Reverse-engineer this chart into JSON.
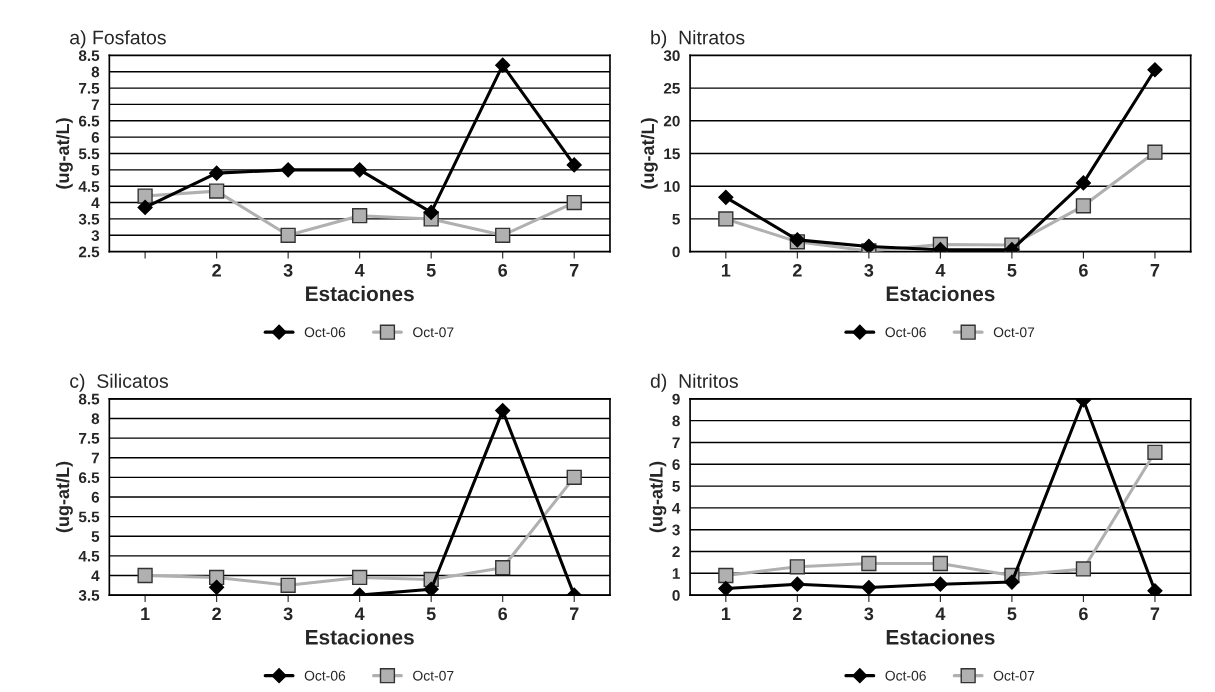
{
  "chart_data": [
    {
      "type": "line",
      "title": "a) Fosfatos",
      "xlabel": "Estaciones",
      "ylabel": "(ug-at/L)",
      "categories": [
        null,
        "2",
        "3",
        "4",
        "5",
        "6",
        "7"
      ],
      "ylim": [
        2.5,
        8.5
      ],
      "yticks": [
        2.5,
        3,
        3.5,
        4,
        4.5,
        5,
        5.5,
        6,
        6.5,
        7,
        7.5,
        8,
        8.5
      ],
      "grid": "y",
      "legend": "bottom",
      "series": [
        {
          "name": "Oct-06",
          "color": "#000000",
          "marker": "diamond",
          "values": [
            3.85,
            4.9,
            5.0,
            5.0,
            3.7,
            8.2,
            5.15
          ]
        },
        {
          "name": "Oct-07",
          "color": "#b0b0b0",
          "marker": "square",
          "values": [
            4.2,
            4.35,
            3.0,
            3.6,
            3.5,
            3.0,
            4.0
          ]
        }
      ]
    },
    {
      "type": "line",
      "title": "b)  Nitratos",
      "xlabel": "Estaciones",
      "ylabel": "(ug-at/L)",
      "categories": [
        "1",
        "2",
        "3",
        "4",
        "5",
        "6",
        "7"
      ],
      "ylim": [
        0,
        30
      ],
      "yticks": [
        0,
        5,
        10,
        15,
        20,
        25,
        30
      ],
      "grid": "y",
      "legend": "bottom",
      "series": [
        {
          "name": "Oct-06",
          "color": "#000000",
          "marker": "diamond",
          "values": [
            8.3,
            1.8,
            0.8,
            0.3,
            0.3,
            10.5,
            27.8
          ]
        },
        {
          "name": "Oct-07",
          "color": "#b0b0b0",
          "marker": "square",
          "values": [
            5.0,
            1.5,
            0.1,
            1.1,
            1.0,
            7.0,
            15.2
          ]
        }
      ]
    },
    {
      "type": "line",
      "title": "c)  Silicatos",
      "xlabel": "Estaciones",
      "ylabel": "(ug-at/L)",
      "categories": [
        "1",
        "2",
        "3",
        "4",
        "5",
        "6",
        "7"
      ],
      "ylim": [
        3.5,
        8.5
      ],
      "yticks": [
        3.5,
        4,
        4.5,
        5,
        5.5,
        6,
        6.5,
        7,
        7.5,
        8,
        8.5
      ],
      "grid": "y",
      "legend": "bottom",
      "series": [
        {
          "name": "Oct-06",
          "color": "#000000",
          "marker": "diamond",
          "values": [
            null,
            3.7,
            null,
            3.5,
            3.65,
            8.2,
            3.5
          ]
        },
        {
          "name": "Oct-07",
          "color": "#b0b0b0",
          "marker": "square",
          "values": [
            4.0,
            3.95,
            3.75,
            3.95,
            3.9,
            4.2,
            6.5
          ]
        }
      ]
    },
    {
      "type": "line",
      "title": "d)  Nitritos",
      "xlabel": "Estaciones",
      "ylabel": "(ug-at/L)",
      "categories": [
        "1",
        "2",
        "3",
        "4",
        "5",
        "6",
        "7"
      ],
      "ylim": [
        0,
        9
      ],
      "yticks": [
        0,
        1,
        2,
        3,
        4,
        5,
        6,
        7,
        8,
        9
      ],
      "grid": "y",
      "legend": "bottom",
      "series": [
        {
          "name": "Oct-06",
          "color": "#000000",
          "marker": "diamond",
          "values": [
            0.3,
            0.5,
            0.35,
            0.5,
            0.6,
            8.95,
            0.2
          ]
        },
        {
          "name": "Oct-07",
          "color": "#b0b0b0",
          "marker": "square",
          "values": [
            0.9,
            1.3,
            1.45,
            1.45,
            0.9,
            1.2,
            6.55
          ]
        }
      ]
    }
  ]
}
